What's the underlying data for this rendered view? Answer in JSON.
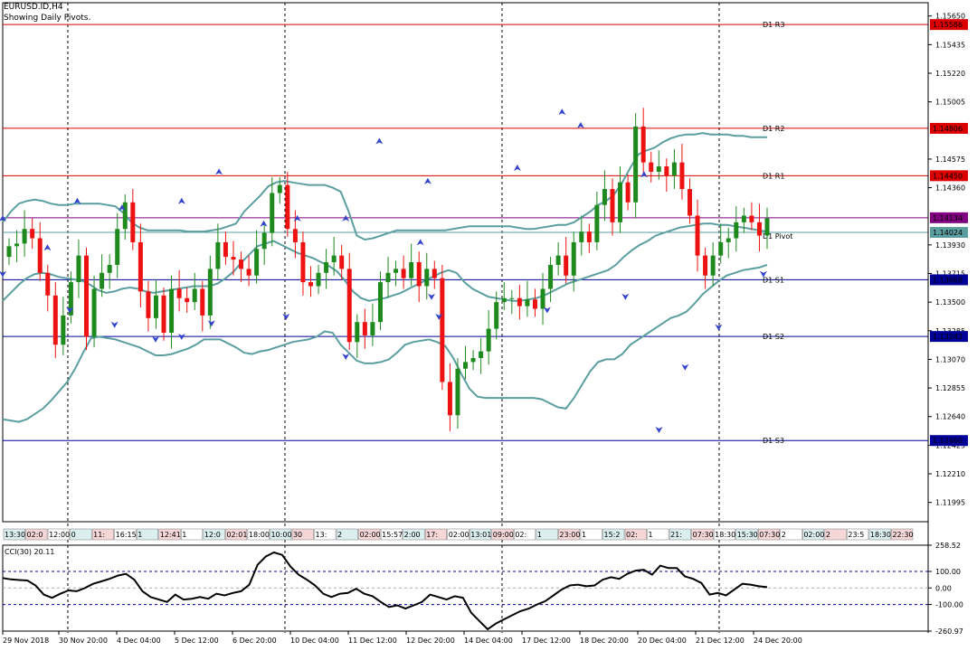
{
  "header": {
    "symbol": "EURUSD.ID,H4",
    "subtitle": "Showing Daily Pivots."
  },
  "colors": {
    "bull": "#1e8a1e",
    "bear": "#ee1111",
    "band": "#5b9ea0",
    "resistance": "#dd0000",
    "support": "#000099",
    "pivot": "#5b9ea0"
  },
  "chart_data": {
    "type": "candlestick",
    "symbol": "EURUSD.ID",
    "timeframe": "H4",
    "ylim": [
      1.1185,
      1.1575
    ],
    "price_ticks": [
      "1.15650",
      "1.15435",
      "1.15220",
      "1.15005",
      "1.14575",
      "1.14360",
      "1.13930",
      "1.13715",
      "1.13500",
      "1.13285",
      "1.13070",
      "1.12855",
      "1.12640",
      "1.12425",
      "1.12210",
      "1.11995"
    ],
    "pivots": [
      {
        "name": "D1 R3",
        "value": "1.15586",
        "kind": "resistance"
      },
      {
        "name": "D1 R2",
        "value": "1.14806",
        "kind": "resistance"
      },
      {
        "name": "D1 R1",
        "value": "1.14450",
        "kind": "resistance"
      },
      {
        "name": "",
        "value": "1.14134",
        "kind": "current"
      },
      {
        "name": "D1 Pivot",
        "value": "1.14024",
        "kind": "pivot"
      },
      {
        "name": "D1 S1",
        "value": "1.13668",
        "kind": "support"
      },
      {
        "name": "D1 S2",
        "value": "1.13242",
        "kind": "support"
      },
      {
        "name": "D1 S3",
        "value": "1.12460",
        "kind": "support"
      }
    ],
    "closes": [
      1.1392,
      1.1394,
      1.1405,
      1.1398,
      1.1372,
      1.1355,
      1.1318,
      1.134,
      1.1365,
      1.1385,
      1.1324,
      1.136,
      1.1372,
      1.1378,
      1.1405,
      1.1425,
      1.1395,
      1.1358,
      1.1338,
      1.1355,
      1.1327,
      1.136,
      1.1353,
      1.135,
      1.136,
      1.134,
      1.1375,
      1.1395,
      1.1384,
      1.1382,
      1.1375,
      1.137,
      1.139,
      1.1402,
      1.1432,
      1.1438,
      1.1405,
      1.1395,
      1.1365,
      1.1362,
      1.1372,
      1.138,
      1.1385,
      1.1375,
      1.132,
      1.1335,
      1.1325,
      1.1335,
      1.1365,
      1.1372,
      1.1375,
      1.1368,
      1.138,
      1.1362,
      1.1375,
      1.1368,
      1.129,
      1.1265,
      1.13,
      1.1305,
      1.1308,
      1.1313,
      1.133,
      1.135,
      1.1353,
      1.1353,
      1.1347,
      1.1352,
      1.1345,
      1.136,
      1.1378,
      1.1385,
      1.137,
      1.1395,
      1.1403,
      1.1395,
      1.1423,
      1.1435,
      1.141,
      1.144,
      1.1425,
      1.1482,
      1.1455,
      1.1448,
      1.1452,
      1.1445,
      1.1455,
      1.1435,
      1.1415,
      1.1385,
      1.137,
      1.1385,
      1.1395,
      1.1398,
      1.141,
      1.1415,
      1.141,
      1.14,
      1.1413
    ],
    "band_upper": [
      1.141,
      1.1418,
      1.1424,
      1.1426,
      1.1427,
      1.1426,
      1.1424,
      1.1423,
      1.1423,
      1.1424,
      1.1424,
      1.1424,
      1.1424,
      1.1423,
      1.1422,
      1.1417,
      1.141,
      1.1406,
      1.1404,
      1.1404,
      1.1404,
      1.1404,
      1.1404,
      1.1403,
      1.1403,
      1.1403,
      1.1404,
      1.1405,
      1.1407,
      1.1409,
      1.1418,
      1.1424,
      1.143,
      1.1437,
      1.144,
      1.1441,
      1.144,
      1.1439,
      1.1438,
      1.1438,
      1.1438,
      1.1436,
      1.1433,
      1.1418,
      1.14,
      1.1397,
      1.1398,
      1.14,
      1.1402,
      1.1404,
      1.1404,
      1.1404,
      1.1404,
      1.1404,
      1.1404,
      1.1404,
      1.1405,
      1.1406,
      1.1407,
      1.1407,
      1.1407,
      1.1407,
      1.1407,
      1.1407,
      1.1406,
      1.1405,
      1.1405,
      1.1406,
      1.1407,
      1.1408,
      1.1408,
      1.141,
      1.1414,
      1.1418,
      1.1423,
      1.1426,
      1.1431,
      1.144,
      1.1451,
      1.1461,
      1.1464,
      1.1466,
      1.147,
      1.1473,
      1.1475,
      1.1476,
      1.1476,
      1.1477,
      1.1476,
      1.1476,
      1.1476,
      1.1475,
      1.1475,
      1.1474,
      1.1474,
      1.1474
    ],
    "band_middle": [
      1.1351,
      1.1357,
      1.1363,
      1.1368,
      1.1371,
      1.1372,
      1.1371,
      1.1369,
      1.1368,
      1.1367,
      1.1366,
      1.1363,
      1.1359,
      1.1357,
      1.1358,
      1.136,
      1.1361,
      1.136,
      1.1358,
      1.1357,
      1.1358,
      1.1359,
      1.136,
      1.1361,
      1.1362,
      1.1362,
      1.1362,
      1.1364,
      1.1368,
      1.1373,
      1.138,
      1.1386,
      1.1392,
      1.1394,
      1.1396,
      1.1393,
      1.139,
      1.1387,
      1.1385,
      1.1383,
      1.138,
      1.1377,
      1.1373,
      1.1366,
      1.1358,
      1.1353,
      1.1351,
      1.1352,
      1.1353,
      1.1355,
      1.1357,
      1.136,
      1.1363,
      1.1366,
      1.1369,
      1.1372,
      1.1374,
      1.1372,
      1.1365,
      1.136,
      1.1357,
      1.1354,
      1.1353,
      1.1352,
      1.1351,
      1.1351,
      1.1352,
      1.1353,
      1.1355,
      1.1358,
      1.1361,
      1.1364,
      1.1366,
      1.1368,
      1.137,
      1.1372,
      1.1374,
      1.1378,
      1.1384,
      1.1389,
      1.1393,
      1.1396,
      1.14,
      1.1402,
      1.1404,
      1.1406,
      1.1407,
      1.1408,
      1.1409,
      1.1409,
      1.1408,
      1.1408,
      1.1407,
      1.1406,
      1.1405,
      1.1404,
      1.1403
    ],
    "band_lower": [
      1.1262,
      1.1261,
      1.126,
      1.1262,
      1.1266,
      1.127,
      1.1276,
      1.1283,
      1.129,
      1.13,
      1.1312,
      1.1323,
      1.1324,
      1.1323,
      1.1322,
      1.132,
      1.1318,
      1.1316,
      1.1313,
      1.131,
      1.131,
      1.1311,
      1.1313,
      1.1315,
      1.1318,
      1.1322,
      1.1322,
      1.1322,
      1.1319,
      1.1316,
      1.1312,
      1.1311,
      1.1313,
      1.1314,
      1.1316,
      1.1318,
      1.132,
      1.1321,
      1.1322,
      1.1324,
      1.1328,
      1.1327,
      1.1318,
      1.1312,
      1.1306,
      1.1304,
      1.1304,
      1.1305,
      1.1307,
      1.1312,
      1.1318,
      1.132,
      1.1321,
      1.1322,
      1.132,
      1.1317,
      1.1308,
      1.1296,
      1.1285,
      1.1279,
      1.1278,
      1.1278,
      1.1278,
      1.1278,
      1.1278,
      1.1278,
      1.1278,
      1.1277,
      1.1274,
      1.1271,
      1.127,
      1.1278,
      1.1288,
      1.1298,
      1.1305,
      1.1307,
      1.1307,
      1.1311,
      1.1318,
      1.1322,
      1.1326,
      1.133,
      1.1334,
      1.1338,
      1.134,
      1.1343,
      1.1349,
      1.1356,
      1.1361,
      1.1366,
      1.137,
      1.1372,
      1.1374,
      1.1375,
      1.1376,
      1.1378
    ],
    "fractals_up": [
      [
        0,
        1.1412
      ],
      [
        12,
        1.139
      ],
      [
        20,
        1.1425
      ],
      [
        32,
        1.142
      ],
      [
        48,
        1.1425
      ],
      [
        58,
        1.1447
      ],
      [
        70,
        1.1408
      ],
      [
        79,
        1.1412
      ],
      [
        92,
        1.1412
      ],
      [
        101,
        1.147
      ],
      [
        112,
        1.1394
      ],
      [
        114,
        1.144
      ],
      [
        138,
        1.145
      ],
      [
        150,
        1.1492
      ],
      [
        155,
        1.1482
      ],
      [
        172,
        1.1445
      ]
    ],
    "fractals_down": [
      [
        0,
        1.1372
      ],
      [
        18,
        1.1345
      ],
      [
        30,
        1.1334
      ],
      [
        41,
        1.1323
      ],
      [
        48,
        1.1325
      ],
      [
        56,
        1.1335
      ],
      [
        76,
        1.134
      ],
      [
        92,
        1.131
      ],
      [
        115,
        1.1355
      ],
      [
        117,
        1.134
      ],
      [
        146,
        1.1345
      ],
      [
        167,
        1.1355
      ],
      [
        176,
        1.1255
      ],
      [
        183,
        1.1302
      ],
      [
        192,
        1.1332
      ],
      [
        204,
        1.1372
      ]
    ],
    "time_labels": [
      "29 Nov 2018",
      "30 Nov 20:00",
      "4 Dec 04:00",
      "5 Dec 12:00",
      "6 Dec 20:00",
      "10 Dec 04:00",
      "11 Dec 12:00",
      "12 Dec 20:00",
      "14 Dec 04:00",
      "17 Dec 12:00",
      "18 Dec 20:00",
      "20 Dec 04:00",
      "21 Dec 12:00",
      "24 Dec 20:00"
    ],
    "session_labels": [
      "13:30",
      "02:0",
      "12:00",
      "0",
      "11:",
      "16:15",
      "1",
      "12:41",
      "1",
      "12:0",
      "02:01",
      "18:00",
      "10:00",
      "30",
      "13:",
      "2",
      "02:00",
      "15:57",
      "2:00",
      "17:",
      "02:00",
      "13:01",
      "09:00",
      "02:",
      "1",
      "23:00",
      "1",
      "15:2",
      "02:",
      "1",
      "21:",
      "07:30",
      "18:30",
      "15:30",
      "07:30",
      "2",
      "02:00",
      "2",
      "23:5",
      "18:30",
      "22:30"
    ]
  },
  "cci": {
    "label": "CCI(30) 20.11",
    "ticks": [
      "258.52",
      "100.00",
      "0.00",
      "-100.00",
      "-260.97"
    ],
    "ylim": [
      -260.97,
      258.52
    ],
    "levels": [
      100,
      0,
      -100
    ],
    "values": [
      60,
      52,
      48,
      45,
      15,
      -40,
      -60,
      -35,
      -15,
      -20,
      0,
      25,
      40,
      55,
      75,
      85,
      50,
      -20,
      -55,
      -70,
      -85,
      -40,
      -70,
      -65,
      -55,
      -65,
      -35,
      -45,
      -30,
      -20,
      20,
      140,
      190,
      215,
      200,
      130,
      80,
      50,
      15,
      -35,
      -55,
      -35,
      -30,
      -5,
      -35,
      -50,
      -85,
      -115,
      -105,
      -125,
      -105,
      -85,
      -40,
      -55,
      -70,
      -50,
      -60,
      -150,
      -200,
      -250,
      -215,
      -190,
      -165,
      -140,
      -125,
      -100,
      -80,
      -45,
      -10,
      15,
      20,
      10,
      15,
      50,
      65,
      55,
      85,
      105,
      110,
      80,
      135,
      120,
      120,
      70,
      55,
      30,
      -40,
      -30,
      -45,
      -10,
      25,
      20,
      10,
      5
    ]
  }
}
